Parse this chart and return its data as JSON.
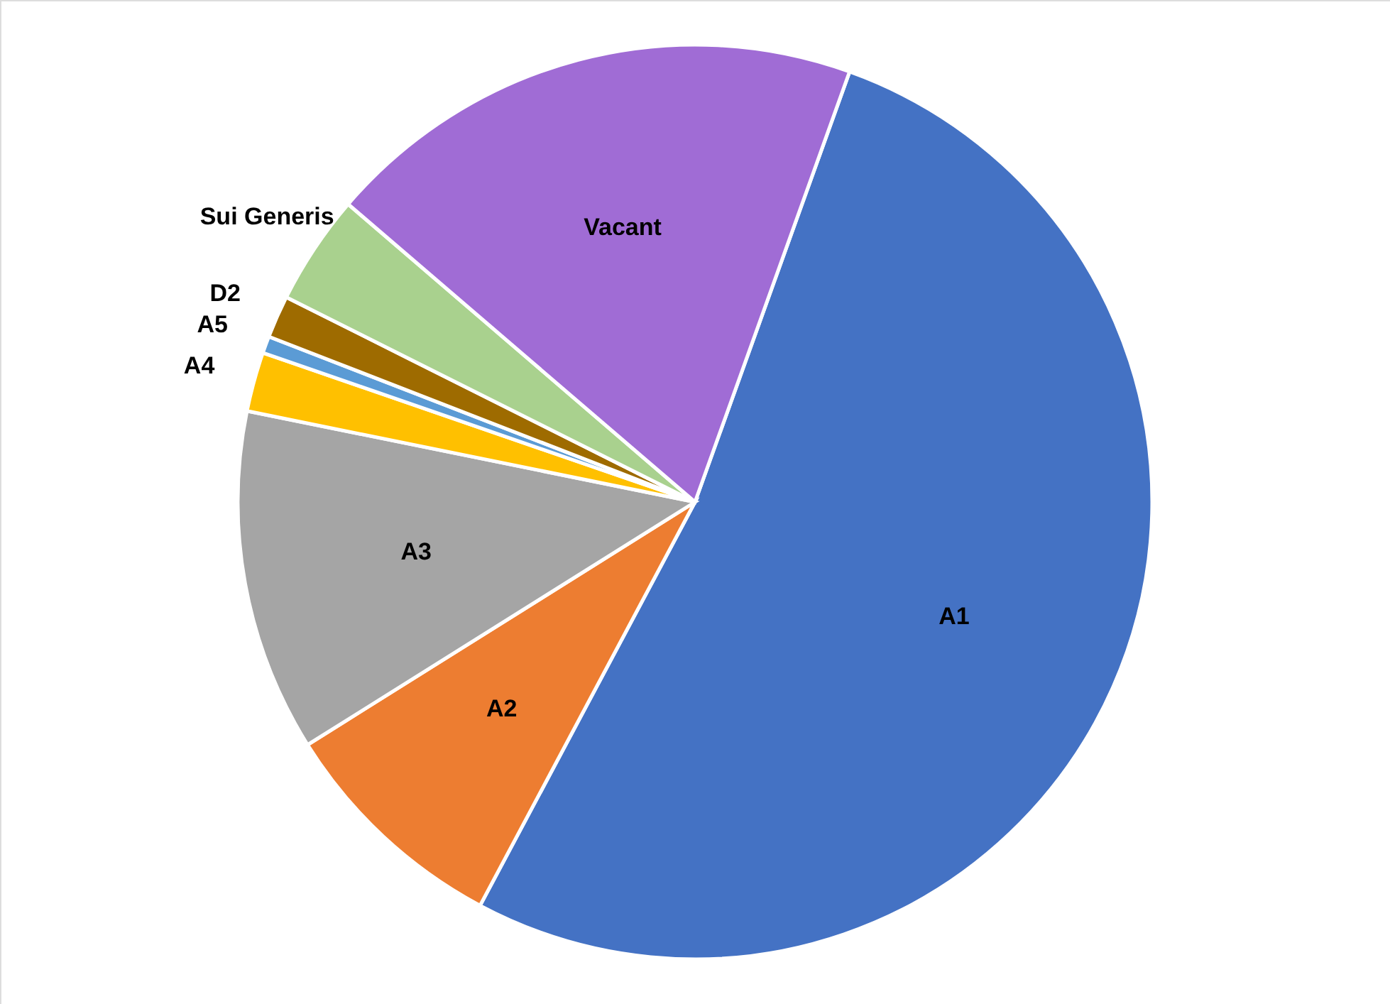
{
  "chart_data": {
    "type": "pie",
    "categories": [
      "A1",
      "A2",
      "A3",
      "A4",
      "A5",
      "D2",
      "Sui Generis",
      "Vacant"
    ],
    "values": [
      52.3,
      8.3,
      12.1,
      2.1,
      0.6,
      1.5,
      3.9,
      19.2
    ],
    "colors": [
      "#4472c4",
      "#ed7d31",
      "#a5a5a5",
      "#ffc000",
      "#5b9bd5",
      "#9e6b00",
      "#a9d18e",
      "#a06cd5"
    ]
  }
}
